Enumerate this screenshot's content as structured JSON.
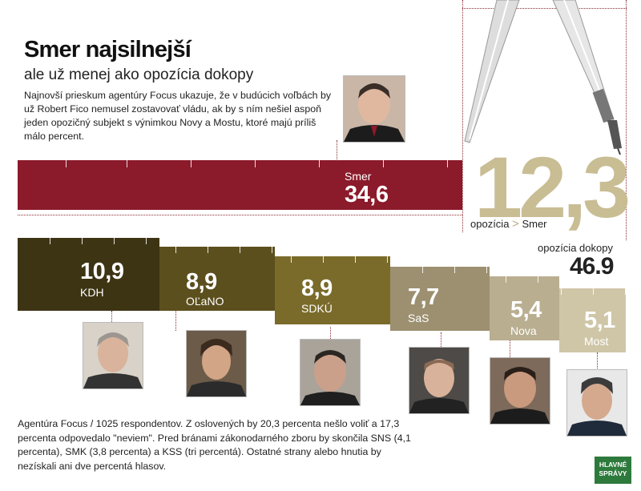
{
  "title": "Smer najsilnejší",
  "subtitle": "ale už menej ako opozícia dokopy",
  "intro": "Najnovší prieskum agentúry Focus ukazuje, že v budúcich voľbách by už Robert Fico nemusel zostavovať vládu, ak by s ním nešiel aspoň jeden opozičný subjekt s výnimkou Novy a Mostu, ktoré majú príliš málo percent.",
  "highlight": {
    "difference": "12,3",
    "difference_label_left": "opozícia",
    "difference_label_gt": ">",
    "difference_label_right": "Smer",
    "opposition_label": "opozícia dokopy",
    "opposition_total": "46.9"
  },
  "chart_data": {
    "type": "bar",
    "title": "Smer najsilnejší",
    "subtitle": "ale už menej ako opozícia dokopy",
    "categories": [
      "Smer",
      "KDH",
      "OĽaNO",
      "SDKÚ",
      "SaS",
      "Nova",
      "Most"
    ],
    "values": [
      34.6,
      10.9,
      8.9,
      8.9,
      7.7,
      5.4,
      5.1
    ],
    "value_labels": [
      "34,6",
      "10,9",
      "8,9",
      "8,9",
      "7,7",
      "5,4",
      "5,1"
    ],
    "colors": [
      "#8b1a2a",
      "#3d3414",
      "#5c4f1e",
      "#7a6b2a",
      "#9d9070",
      "#b9ae90",
      "#cfc6a8"
    ],
    "unit": "percent"
  },
  "footer": "Agentúra Focus / 1025 respondentov. Z oslovených by 20,3 percenta nešlo voliť a 17,3 percenta odpovedalo \"neviem\". Pred bránami zákonodarného zboru by skončila SNS (4,1 percenta), SMK (3,8 percenta) a KSS (tri percentá). Ostatné strany alebo hnutia by nezískali ani dve percentá hlasov.",
  "logo": "HLAVNÉ SPRÁVY",
  "icons": [
    "drawing-compass-icon",
    "portrait-photo-icon"
  ]
}
